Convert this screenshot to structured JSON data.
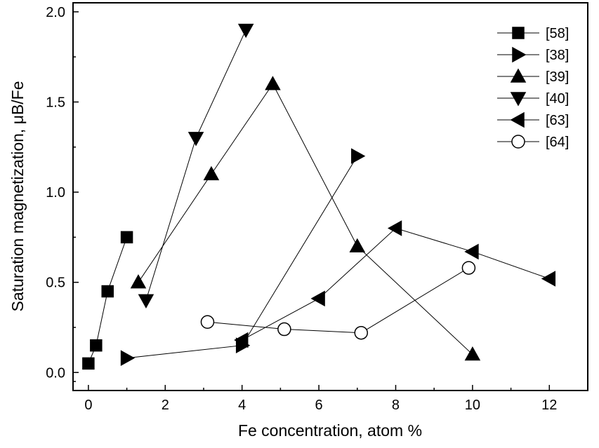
{
  "chart_data": {
    "type": "scatter",
    "title": "",
    "xlabel": "Fe concentration, atom %",
    "ylabel": "Saturation magnetization, μB/Fe",
    "xlim": [
      -0.4,
      13
    ],
    "ylim": [
      -0.1,
      2.05
    ],
    "xticks": [
      0,
      2,
      4,
      6,
      8,
      10,
      12
    ],
    "yticks": [
      0.0,
      0.5,
      1.0,
      1.5,
      2.0
    ],
    "xtick_labels": [
      "0",
      "2",
      "4",
      "6",
      "8",
      "10",
      "12"
    ],
    "ytick_labels": [
      "0.0",
      "0.5",
      "1.0",
      "1.5",
      "2.0"
    ],
    "grid": false,
    "legend_position": "top-right",
    "series": [
      {
        "name": "[58]",
        "marker": "square",
        "filled": true,
        "x": [
          0,
          0.2,
          0.5,
          1.0
        ],
        "y": [
          0.05,
          0.15,
          0.45,
          0.75
        ]
      },
      {
        "name": "[38]",
        "marker": "triangle-right",
        "filled": true,
        "x": [
          1.0,
          4.0,
          7.0
        ],
        "y": [
          0.08,
          0.15,
          1.2
        ]
      },
      {
        "name": "[39]",
        "marker": "triangle-up",
        "filled": true,
        "x": [
          1.3,
          3.2,
          4.8,
          7.0,
          10.0
        ],
        "y": [
          0.5,
          1.1,
          1.6,
          0.7,
          0.1
        ]
      },
      {
        "name": "[40]",
        "marker": "triangle-down",
        "filled": true,
        "x": [
          1.5,
          2.8,
          4.1
        ],
        "y": [
          0.4,
          1.3,
          1.9
        ]
      },
      {
        "name": "[63]",
        "marker": "triangle-left",
        "filled": true,
        "x": [
          4.0,
          6.0,
          8.0,
          10.0,
          12.0
        ],
        "y": [
          0.18,
          0.41,
          0.8,
          0.67,
          0.52
        ]
      },
      {
        "name": "[64]",
        "marker": "circle",
        "filled": false,
        "x": [
          3.1,
          5.1,
          7.1,
          9.9
        ],
        "y": [
          0.28,
          0.24,
          0.22,
          0.58
        ]
      }
    ]
  }
}
